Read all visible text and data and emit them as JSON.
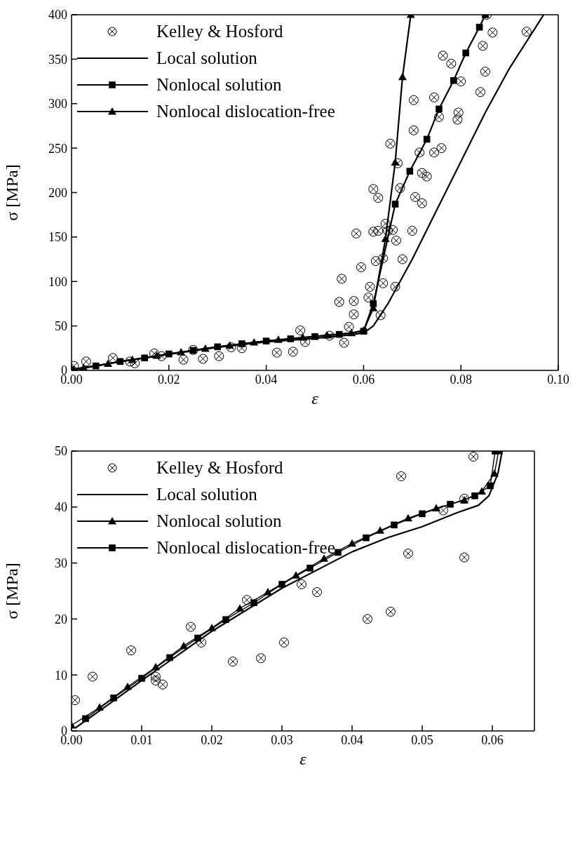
{
  "chart_data": [
    {
      "type": "line",
      "xlabel": "ε",
      "ylabel": "σ [MPa]",
      "xlim": [
        0,
        0.1
      ],
      "xticks": [
        {
          "value": 0,
          "label": "0.00"
        },
        {
          "value": 0.02,
          "label": "0.02"
        },
        {
          "value": 0.04,
          "label": "0.04"
        },
        {
          "value": 0.06,
          "label": "0.06"
        },
        {
          "value": 0.08,
          "label": "0.08"
        },
        {
          "value": 0.1,
          "label": "0.10"
        }
      ],
      "ylim": [
        0,
        400
      ],
      "yticks": [
        0,
        50,
        100,
        150,
        200,
        250,
        300,
        350,
        400
      ],
      "legend": "top left",
      "grid": false,
      "series": [
        {
          "name": "Kelley & Hosford",
          "type": "scatter",
          "marker": "circle",
          "color": "#000000",
          "x": [
            0.0005,
            0.003,
            0.0085,
            0.012,
            0.013,
            0.017,
            0.0185,
            0.023,
            0.025,
            0.027,
            0.0303,
            0.0328,
            0.035,
            0.0422,
            0.0455,
            0.047,
            0.048,
            0.053,
            0.055,
            0.0555,
            0.056,
            0.057,
            0.058,
            0.058,
            0.0585,
            0.0595,
            0.061,
            0.0613,
            0.062,
            0.062,
            0.0625,
            0.063,
            0.063,
            0.0635,
            0.064,
            0.064,
            0.0645,
            0.065,
            0.0655,
            0.066,
            0.0665,
            0.0667,
            0.067,
            0.0675,
            0.068,
            0.0703,
            0.0703,
            0.07,
            0.0706,
            0.0715,
            0.072,
            0.072,
            0.073,
            0.0745,
            0.0745,
            0.0755,
            0.0763,
            0.076,
            0.078,
            0.0793,
            0.0795,
            0.08,
            0.084,
            0.0845,
            0.085,
            0.0853,
            0.0865,
            0.0935
          ],
          "values": [
            5,
            10,
            14,
            10,
            8,
            19,
            16,
            12,
            23,
            13,
            16,
            26,
            25,
            20,
            21,
            45,
            32,
            39,
            77,
            103,
            31,
            49,
            78,
            63,
            154,
            116,
            82,
            94,
            204,
            156,
            123,
            194,
            157,
            62,
            126,
            98,
            165,
            157,
            255,
            158,
            94,
            146,
            233,
            205,
            125,
            304,
            270,
            157,
            195,
            245,
            222,
            188,
            218,
            307,
            245,
            285,
            354,
            250,
            345,
            282,
            290,
            325,
            313,
            365,
            336,
            400,
            380,
            381
          ]
        },
        {
          "name": "Local solution",
          "marker": "none",
          "color": "#000000",
          "x": [
            0,
            0.01,
            0.02,
            0.03,
            0.04,
            0.05,
            0.055,
            0.058,
            0.06,
            0.062,
            0.065,
            0.07,
            0.075,
            0.08,
            0.085,
            0.09,
            0.097
          ],
          "values": [
            0,
            10,
            18,
            26,
            32,
            36,
            38.5,
            40.5,
            42,
            50,
            75,
            125,
            180,
            235,
            290,
            340,
            400
          ]
        },
        {
          "name": "Nonlocal solution",
          "marker": "square",
          "color": "#000000",
          "x": [
            0,
            0.005,
            0.01,
            0.015,
            0.02,
            0.025,
            0.03,
            0.035,
            0.04,
            0.045,
            0.05,
            0.055,
            0.06,
            0.062,
            0.0665,
            0.0695,
            0.073,
            0.0755,
            0.0785,
            0.081,
            0.0838,
            0.085
          ],
          "values": [
            1,
            5,
            10,
            14,
            18.5,
            22.5,
            26.5,
            30,
            33,
            35.5,
            38,
            40.5,
            44,
            75,
            187,
            224,
            260,
            294,
            326,
            357,
            386,
            400
          ]
        },
        {
          "name": "Nonlocal dislocation-free",
          "marker": "triangle",
          "color": "#000000",
          "x": [
            0,
            0.0025,
            0.0075,
            0.0125,
            0.0175,
            0.0225,
            0.0275,
            0.0325,
            0.0375,
            0.0425,
            0.0475,
            0.0525,
            0.0575,
            0.06,
            0.062,
            0.0645,
            0.0665,
            0.068,
            0.0697
          ],
          "values": [
            1,
            3,
            7.5,
            12,
            16.5,
            20.5,
            24.5,
            28,
            31.5,
            34.5,
            37,
            39.5,
            42,
            45,
            70,
            148,
            234,
            330,
            400
          ]
        }
      ]
    },
    {
      "type": "line",
      "xlabel": "ε",
      "ylabel": "σ [MPa]",
      "xlim": [
        0,
        0.066
      ],
      "xticks": [
        {
          "value": 0,
          "label": "0.00"
        },
        {
          "value": 0.01,
          "label": "0.01"
        },
        {
          "value": 0.02,
          "label": "0.02"
        },
        {
          "value": 0.03,
          "label": "0.03"
        },
        {
          "value": 0.04,
          "label": "0.04"
        },
        {
          "value": 0.05,
          "label": "0.05"
        },
        {
          "value": 0.06,
          "label": "0.06"
        }
      ],
      "ylim": [
        0,
        50
      ],
      "yticks": [
        0,
        10,
        20,
        30,
        40,
        50
      ],
      "legend": "top left",
      "grid": false,
      "series": [
        {
          "name": "Kelley & Hosford",
          "type": "scatter",
          "marker": "circle",
          "color": "#000000",
          "x": [
            0.0005,
            0.003,
            0.0085,
            0.012,
            0.012,
            0.013,
            0.017,
            0.0185,
            0.023,
            0.025,
            0.027,
            0.0303,
            0.0328,
            0.035,
            0.0422,
            0.0455,
            0.047,
            0.048,
            0.053,
            0.056,
            0.056,
            0.0573
          ],
          "values": [
            5.5,
            9.7,
            14.4,
            9.7,
            9.0,
            8.3,
            18.6,
            15.8,
            12.4,
            23.4,
            13.0,
            15.8,
            26.2,
            24.8,
            20.0,
            21.3,
            45.5,
            31.7,
            39.4,
            31.0,
            41.5,
            49.0
          ]
        },
        {
          "name": "Local solution",
          "marker": "none",
          "color": "#000000",
          "x": [
            0.0005,
            0.005,
            0.01,
            0.02,
            0.03,
            0.04,
            0.045,
            0.05,
            0.055,
            0.058,
            0.0595,
            0.0608,
            0.0614
          ],
          "values": [
            0.5,
            4.5,
            9,
            17.8,
            25.5,
            32,
            34.5,
            36.5,
            39,
            40.3,
            42,
            46,
            50
          ]
        },
        {
          "name": "Nonlocal solution",
          "marker": "triangle",
          "color": "#000000",
          "x": [
            0,
            0.004,
            0.008,
            0.012,
            0.016,
            0.02,
            0.024,
            0.028,
            0.032,
            0.036,
            0.04,
            0.044,
            0.048,
            0.052,
            0.056,
            0.0585,
            0.0603,
            0.0609
          ],
          "values": [
            1,
            4.2,
            7.9,
            11.4,
            15.2,
            18.4,
            21.9,
            24.8,
            27.8,
            30.8,
            33.5,
            35.8,
            38,
            39.8,
            41.2,
            42.8,
            46,
            50
          ]
        },
        {
          "name": "Nonlocal dislocation-free",
          "marker": "square",
          "color": "#000000",
          "x": [
            0.002,
            0.006,
            0.01,
            0.014,
            0.018,
            0.022,
            0.026,
            0.03,
            0.034,
            0.038,
            0.042,
            0.046,
            0.05,
            0.054,
            0.0575,
            0.0597,
            0.0604
          ],
          "values": [
            2.2,
            5.9,
            9.4,
            13.1,
            16.6,
            19.9,
            22.9,
            26.2,
            29.1,
            31.9,
            34.5,
            36.8,
            38.8,
            40.5,
            42,
            43.8,
            50
          ]
        }
      ]
    }
  ]
}
